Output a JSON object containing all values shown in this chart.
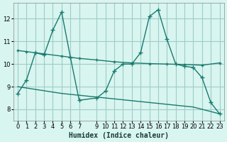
{
  "xlabel": "Humidex (Indice chaleur)",
  "ylabel": "",
  "bg_color": "#d8f5f0",
  "grid_color": "#a0ccc8",
  "line_color": "#1a7a6e",
  "ylim": [
    7.5,
    12.7
  ],
  "xlim": [
    -0.5,
    23.5
  ],
  "yticks": [
    8,
    9,
    10,
    11,
    12
  ],
  "xticks": [
    0,
    1,
    2,
    3,
    4,
    5,
    6,
    7,
    9,
    10,
    11,
    12,
    13,
    14,
    15,
    16,
    17,
    18,
    19,
    20,
    21,
    22,
    23
  ],
  "line1_x": [
    0,
    1,
    2,
    3,
    4,
    5,
    6,
    7,
    9,
    10,
    11,
    12,
    13,
    14,
    15,
    16,
    17,
    18,
    19,
    20,
    21,
    22,
    23
  ],
  "line1_y": [
    8.7,
    9.3,
    10.5,
    10.4,
    11.5,
    12.3,
    10.3,
    8.4,
    8.5,
    8.8,
    9.7,
    10.0,
    10.0,
    10.5,
    12.1,
    12.4,
    11.1,
    10.0,
    9.9,
    9.85,
    9.4,
    8.3,
    7.8
  ],
  "line2_x": [
    0,
    1,
    3,
    5,
    7,
    9,
    11,
    13,
    15,
    17,
    19,
    21,
    23
  ],
  "line2_y": [
    10.6,
    10.55,
    10.45,
    10.35,
    10.25,
    10.18,
    10.1,
    10.05,
    10.02,
    10.0,
    9.98,
    9.95,
    10.05
  ],
  "line3_x": [
    0,
    5,
    10,
    15,
    20,
    23
  ],
  "line3_y": [
    9.0,
    8.7,
    8.5,
    8.3,
    8.1,
    7.8
  ]
}
